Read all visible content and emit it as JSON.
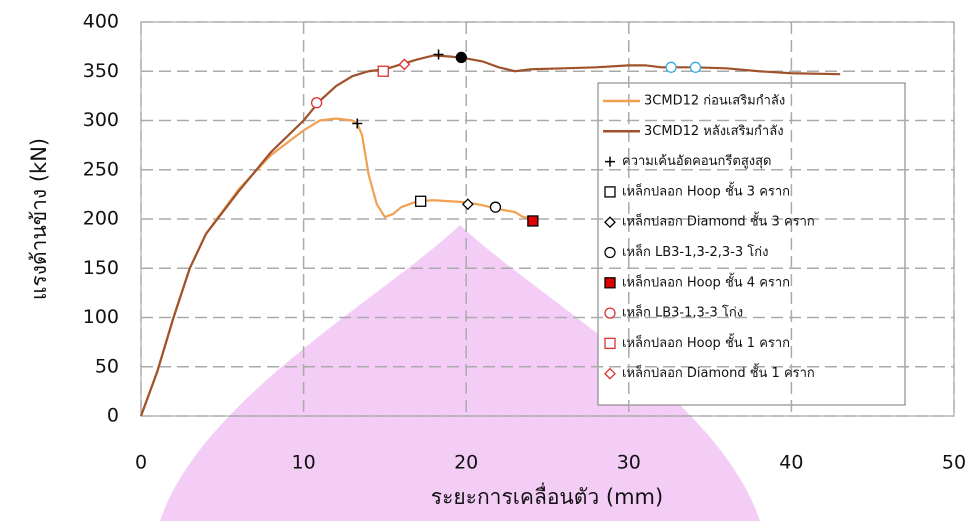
{
  "chart_data": {
    "type": "line",
    "xlabel": "ระยะการเคลื่อนตัว (mm)",
    "ylabel": "แรงด้านข้าง (kN)",
    "xlim": [
      0,
      50
    ],
    "xticks": [
      0,
      10,
      20,
      30,
      40,
      50
    ],
    "ylim": [
      0,
      400
    ],
    "yticks": [
      0,
      50,
      100,
      150,
      200,
      250,
      300,
      350,
      400
    ],
    "grid": true,
    "legend": "right",
    "series": [
      {
        "name": "3CMD12 ก่อนเสริมกำลัง",
        "color": "#f0a050",
        "x": [
          0,
          1,
          2,
          3,
          4,
          6,
          8,
          10,
          11,
          12,
          13,
          13.3,
          13.6,
          14,
          14.5,
          15,
          15.5,
          16,
          17,
          18,
          19,
          20,
          21,
          22,
          23,
          23.5,
          24
        ],
        "values": [
          0,
          45,
          100,
          150,
          185,
          230,
          265,
          290,
          300,
          302,
          300,
          297,
          285,
          245,
          215,
          202,
          205,
          212,
          218,
          219,
          218,
          217,
          214,
          210,
          207,
          202,
          201
        ]
      },
      {
        "name": "3CMD12 หลังเสริมกำลัง",
        "color": "#a0522d",
        "x": [
          0,
          1,
          2,
          3,
          4,
          6,
          8,
          10,
          11,
          12,
          13,
          14,
          15,
          16,
          17,
          18,
          19,
          20,
          21,
          22,
          23,
          24,
          26,
          28,
          30,
          31,
          32,
          34,
          36,
          38,
          40,
          43
        ],
        "values": [
          0,
          45,
          100,
          150,
          185,
          228,
          268,
          300,
          320,
          335,
          345,
          350,
          352,
          357,
          362,
          366,
          365,
          363,
          360,
          354,
          350,
          352,
          353,
          354,
          356,
          356,
          354,
          354,
          353,
          350,
          348,
          347
        ]
      },
      {
        "name": "ความเค้นอัดคอนกรีตสูงสุด",
        "color": "#000000",
        "marker": "plus",
        "x": [
          13.3,
          18.3
        ],
        "values": [
          297,
          367
        ]
      },
      {
        "name": "เหล็กปลอก Hoop ชั้น 3 คราก",
        "color": "#000000",
        "marker": "square",
        "x": [
          17.2
        ],
        "values": [
          218
        ]
      },
      {
        "name": "เหล็กปลอก Diamond ชั้น 3 คราก",
        "color": "#000000",
        "marker": "diamond",
        "x": [
          20.1
        ],
        "values": [
          215
        ]
      },
      {
        "name": "เหล็ก LB3-1,3-2,3-3 โก่ง",
        "color": "#000000",
        "marker": "circle",
        "x": [
          21.8
        ],
        "values": [
          212
        ]
      },
      {
        "name": "เหล็กปลอก Hoop ชั้น 4 คราก",
        "color": "#e00000",
        "marker": "square-filled",
        "x": [
          24.1
        ],
        "values": [
          198
        ]
      },
      {
        "name": "เหล็ก LB3-1,3-3 โก่ง",
        "color": "#e03030",
        "marker": "circle",
        "x": [
          10.8
        ],
        "values": [
          318
        ]
      },
      {
        "name": "เหล็กปลอก Hoop ชั้น 1 คราก",
        "color": "#e03030",
        "marker": "square",
        "x": [
          14.9
        ],
        "values": [
          350
        ]
      },
      {
        "name": "เหล็กปลอก Diamond ชั้น 1 คราก",
        "color": "#e03030",
        "marker": "diamond",
        "x": [
          16.2
        ],
        "values": [
          357
        ]
      },
      {
        "color": "#000000",
        "marker": "circle-filled",
        "x": [
          19.7
        ],
        "values": [
          364
        ]
      },
      {
        "color": "#30b0e0",
        "marker": "circle",
        "x": [
          32.6,
          34.1
        ],
        "values": [
          354,
          354
        ]
      }
    ]
  }
}
